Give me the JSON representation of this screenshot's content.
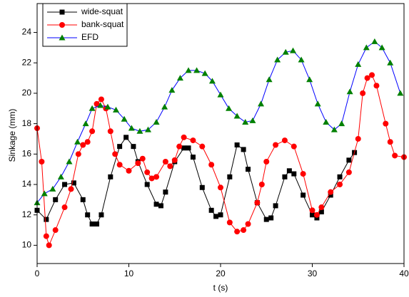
{
  "chart_data": {
    "type": "line",
    "x_label": "t (s)",
    "y_label": "Sinkage (mm)",
    "xlim": [
      0,
      40
    ],
    "xticks": [
      0,
      10,
      20,
      30,
      40
    ],
    "ylim": [
      8.8,
      25.9
    ],
    "yticks": [
      10,
      12,
      14,
      16,
      18,
      20,
      22,
      24
    ],
    "legend": "upper left",
    "series": [
      {
        "name": "wide-squat",
        "color": "#000000",
        "marker": "square",
        "marker_color": "#000000",
        "x": [
          0,
          1,
          2,
          3,
          4,
          5,
          5.5,
          6,
          6.5,
          7,
          8,
          9,
          9.7,
          10.5,
          11,
          12,
          13,
          13.5,
          14,
          15,
          16,
          16.5,
          17,
          18,
          19,
          19.5,
          20,
          21,
          21.8,
          22.5,
          23,
          24,
          25,
          25.5,
          26,
          27,
          27.5,
          28,
          29,
          30,
          30.5,
          31,
          32,
          33,
          34,
          34.6
        ],
        "values": [
          12.3,
          11.7,
          13.0,
          14.0,
          14.1,
          13.0,
          12.0,
          11.4,
          11.4,
          12.0,
          14.5,
          16.5,
          17.1,
          16.5,
          15.5,
          14.0,
          12.7,
          12.6,
          13.5,
          15.5,
          16.4,
          16.4,
          15.8,
          13.8,
          12.3,
          11.9,
          12.0,
          14.5,
          16.6,
          16.3,
          15.0,
          12.8,
          11.7,
          11.8,
          12.6,
          14.5,
          14.9,
          14.7,
          13.3,
          12.0,
          11.8,
          12.2,
          13.3,
          14.5,
          15.6,
          16.1
        ]
      },
      {
        "name": "bank-squat",
        "color": "#ff0000",
        "marker": "circle",
        "marker_color": "#ff0000",
        "x": [
          0,
          0.5,
          1,
          1.3,
          2,
          3,
          3.7,
          4.5,
          5,
          5.5,
          6,
          6.5,
          7,
          7.5,
          8,
          8.5,
          9,
          10,
          11,
          11.5,
          12,
          12.5,
          13,
          14,
          14.5,
          15,
          15.5,
          16,
          17,
          18,
          19,
          20,
          21,
          21.8,
          22.5,
          23,
          24,
          24.5,
          25,
          26,
          27,
          28,
          29,
          30,
          30.5,
          31,
          32,
          33,
          34,
          35,
          35.5,
          36,
          36.5,
          37,
          38,
          38.5,
          39,
          40
        ],
        "values": [
          17.7,
          15.5,
          10.6,
          10.0,
          11.0,
          12.5,
          13.7,
          16.0,
          16.6,
          16.8,
          17.5,
          19.3,
          19.6,
          19.0,
          17.5,
          16.0,
          15.3,
          14.9,
          15.4,
          15.7,
          14.8,
          14.4,
          14.5,
          15.5,
          15.2,
          15.6,
          16.5,
          17.1,
          16.9,
          16.5,
          15.3,
          13.8,
          11.5,
          10.9,
          11.0,
          11.4,
          12.8,
          14.0,
          15.5,
          16.6,
          16.9,
          16.5,
          14.7,
          12.3,
          12.0,
          12.5,
          13.5,
          14.0,
          14.8,
          17.0,
          20.0,
          21.0,
          21.2,
          20.5,
          18.0,
          16.8,
          15.9,
          15.8
        ]
      },
      {
        "name": "EFD",
        "color": "#0000ff",
        "marker": "triangle",
        "marker_color": "#008000",
        "x": [
          0,
          0.8,
          1.7,
          2.6,
          3.5,
          4.4,
          5.3,
          6,
          6.9,
          7.7,
          8.6,
          9.5,
          10.3,
          11.2,
          12.1,
          13,
          13.9,
          14.7,
          15.6,
          16.5,
          17.4,
          18.3,
          19.1,
          20,
          20.9,
          21.8,
          22.7,
          23.5,
          24.4,
          25.3,
          26.2,
          27.1,
          27.9,
          28.8,
          29.7,
          30.6,
          31.5,
          32.4,
          33.2,
          34.1,
          35,
          35.9,
          36.8,
          37.6,
          38.5,
          39.6
        ],
        "values": [
          12.8,
          13.4,
          13.7,
          14.5,
          15.5,
          16.8,
          18.0,
          19.0,
          19.2,
          19.1,
          18.9,
          18.3,
          17.7,
          17.5,
          17.6,
          18.1,
          19.1,
          20.2,
          21.0,
          21.5,
          21.5,
          21.3,
          20.8,
          19.9,
          19.0,
          18.5,
          18.1,
          18.2,
          19.3,
          20.9,
          22.2,
          22.7,
          22.8,
          22.2,
          20.9,
          19.3,
          18.1,
          17.6,
          18.0,
          20.1,
          21.9,
          23.0,
          23.4,
          23.0,
          22.0,
          20.0
        ]
      }
    ]
  }
}
